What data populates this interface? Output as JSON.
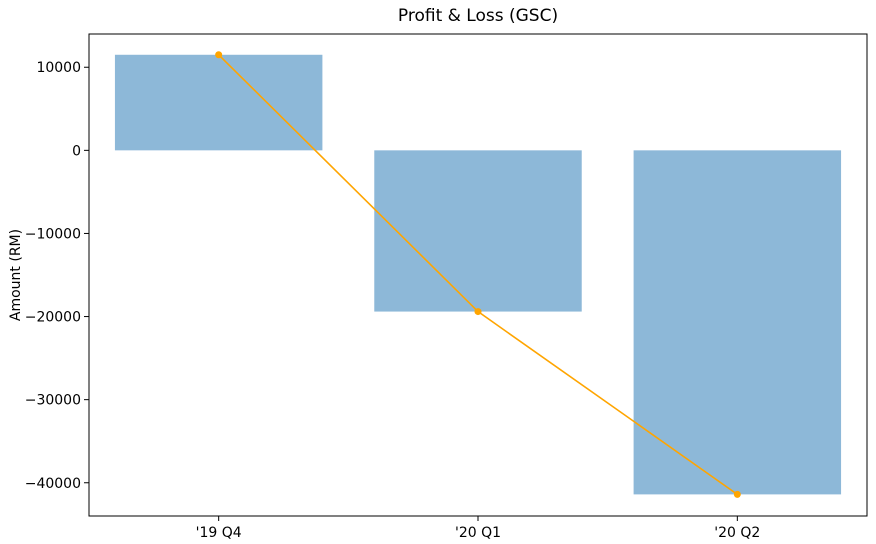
{
  "chart_data": {
    "type": "bar",
    "title": "Profit & Loss (GSC)",
    "xlabel": "",
    "ylabel": "Amount (RM)",
    "categories": [
      "'19 Q4",
      "'20 Q1",
      "'20 Q2"
    ],
    "values": [
      11500,
      -19400,
      -41400
    ],
    "line_overlay": {
      "values": [
        11500,
        -19400,
        -41400
      ],
      "color": "#FFA500",
      "markers": true
    },
    "bar_color": "#8DB8D8",
    "ylim": [
      -44000,
      14000
    ],
    "yticks": [
      10000,
      0,
      -10000,
      -20000,
      -30000,
      -40000
    ],
    "ytick_labels": [
      "10000",
      "0",
      "−10000",
      "−20000",
      "−30000",
      "−40000"
    ],
    "grid": false,
    "legend": "none"
  }
}
